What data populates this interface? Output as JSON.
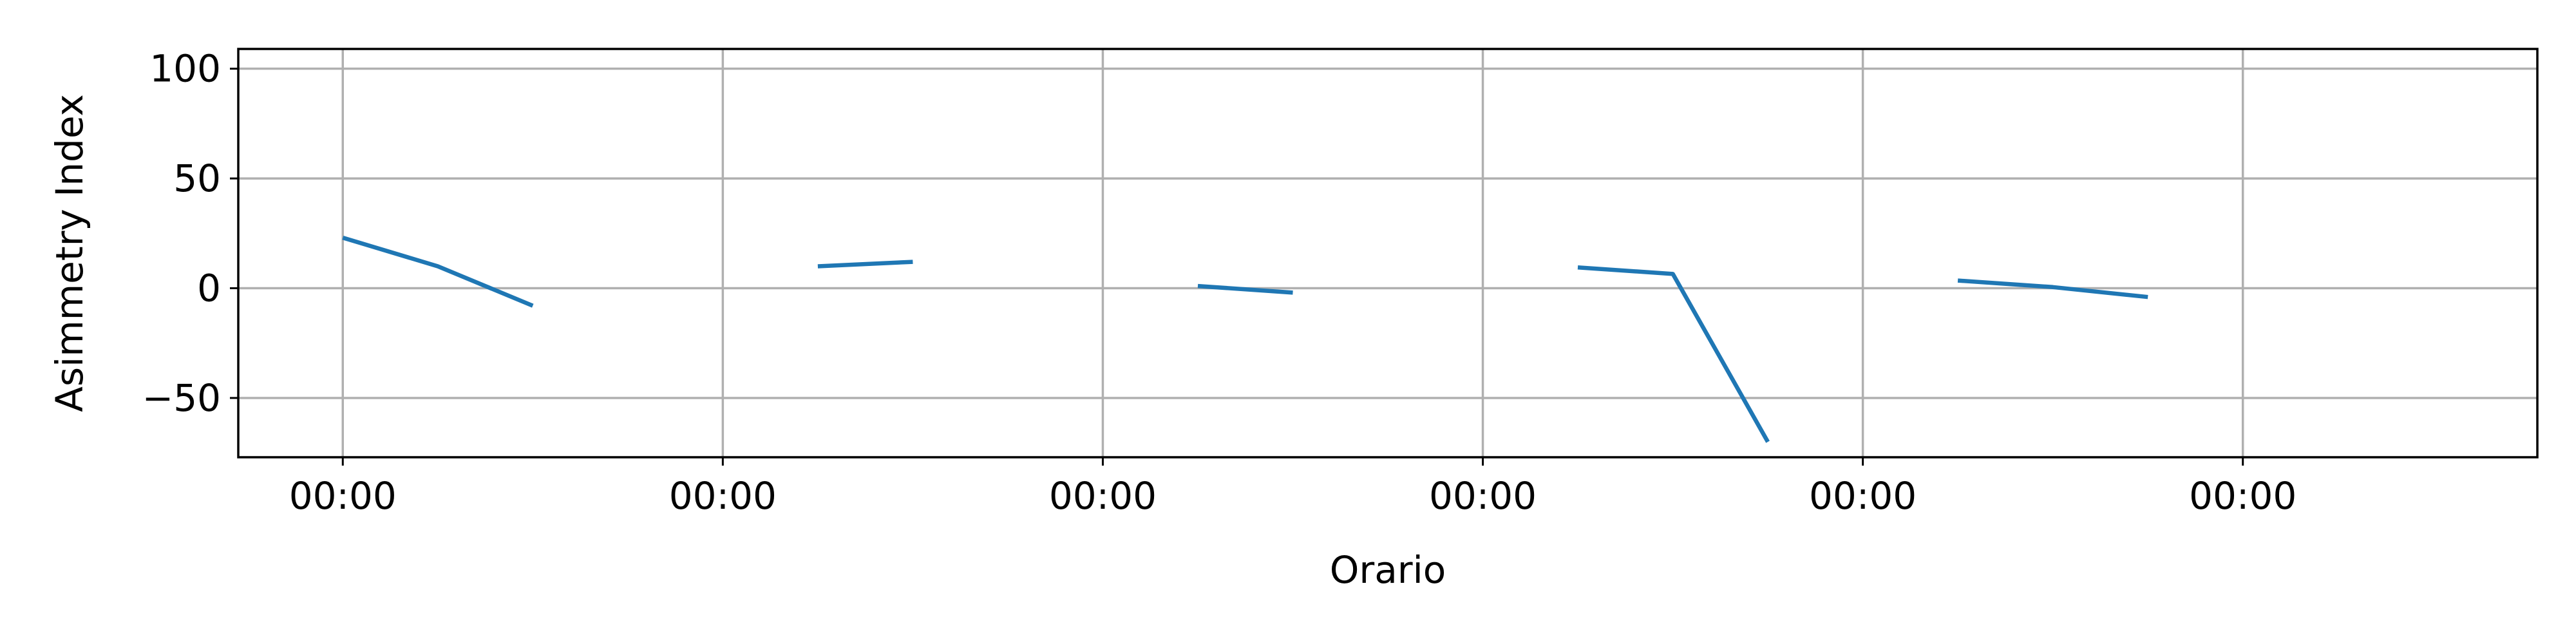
{
  "chart_data": {
    "type": "line",
    "title": "",
    "xlabel": "Orario",
    "ylabel": "Asimmetry Index",
    "xlim": [
      -0.275,
      5.775
    ],
    "ylim": [
      -77,
      109
    ],
    "x_ticks": [
      0,
      1,
      2,
      3,
      4,
      5
    ],
    "x_tick_labels": [
      "00:00",
      "00:00",
      "00:00",
      "00:00",
      "00:00",
      "00:00"
    ],
    "y_ticks": [
      -50,
      0,
      50,
      100
    ],
    "y_tick_labels": [
      "−50",
      "0",
      "50",
      "100"
    ],
    "grid": true,
    "legend": "none",
    "color": "#1f77b4",
    "segments": [
      {
        "x": [
          0.0,
          0.25,
          0.5
        ],
        "y": [
          23,
          10,
          -8
        ]
      },
      {
        "x": [
          1.25,
          1.5
        ],
        "y": [
          10,
          12
        ]
      },
      {
        "x": [
          2.25,
          2.5
        ],
        "y": [
          1,
          -2
        ]
      },
      {
        "x": [
          3.25,
          3.5,
          3.75
        ],
        "y": [
          9.5,
          6.5,
          -70
        ]
      },
      {
        "x": [
          4.25,
          4.5,
          4.75
        ],
        "y": [
          3.5,
          0.5,
          -4
        ]
      }
    ]
  }
}
